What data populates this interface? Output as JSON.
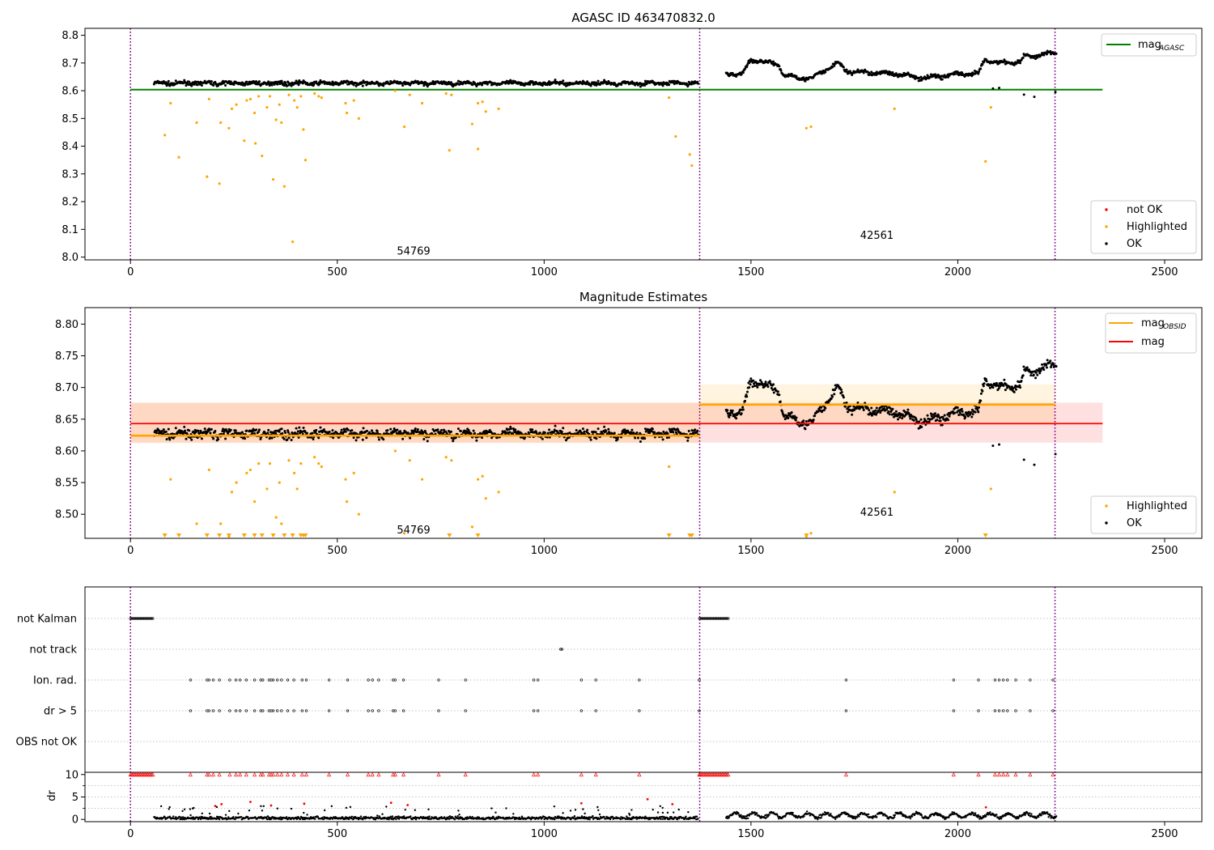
{
  "chart_data": [
    {
      "type": "scatter",
      "title": "AGASC ID 463470832.0",
      "xlim": [
        -110,
        2590
      ],
      "ylim": [
        7.99,
        8.825
      ],
      "xticks": [
        0,
        500,
        1000,
        1500,
        2000,
        2500
      ],
      "yticks": [
        8.0,
        8.1,
        8.2,
        8.3,
        8.4,
        8.5,
        8.6,
        8.7,
        8.8
      ],
      "ytick_labels": [
        "8.0",
        "8.1",
        "8.2",
        "8.3",
        "8.4",
        "8.5",
        "8.6",
        "8.7",
        "8.8"
      ],
      "vlines": [
        0,
        1376,
        2235
      ],
      "hline": {
        "name": "mag",
        "name_sub": "AGASC",
        "y": 8.604,
        "x": [
          0,
          2350
        ],
        "color": "#008000"
      },
      "line_legend": [
        {
          "label": "mag",
          "sub": "AGASC",
          "color": "#008000"
        }
      ],
      "marker_legend": [
        {
          "label": "not OK",
          "color": "#ff0000"
        },
        {
          "label": "Highlighted",
          "color": "#ffa500"
        },
        {
          "label": "OK",
          "color": "#000000"
        }
      ],
      "annotations": [
        {
          "text": "54769",
          "x": 687,
          "y": 8.02
        },
        {
          "text": "42561",
          "x": 1807,
          "y": 8.078
        }
      ],
      "highlighted_points": [
        [
          83,
          8.44
        ],
        [
          97,
          8.555
        ],
        [
          117,
          8.36
        ],
        [
          160,
          8.485
        ],
        [
          185,
          8.29
        ],
        [
          190,
          8.57
        ],
        [
          215,
          8.265
        ],
        [
          218,
          8.485
        ],
        [
          238,
          8.465
        ],
        [
          245,
          8.535
        ],
        [
          256,
          8.55
        ],
        [
          275,
          8.42
        ],
        [
          281,
          8.565
        ],
        [
          290,
          8.57
        ],
        [
          300,
          8.52
        ],
        [
          302,
          8.41
        ],
        [
          310,
          8.58
        ],
        [
          318,
          8.365
        ],
        [
          330,
          8.54
        ],
        [
          337,
          8.58
        ],
        [
          345,
          8.28
        ],
        [
          352,
          8.495
        ],
        [
          360,
          8.55
        ],
        [
          365,
          8.485
        ],
        [
          372,
          8.255
        ],
        [
          383,
          8.585
        ],
        [
          392,
          8.055
        ],
        [
          396,
          8.565
        ],
        [
          403,
          8.54
        ],
        [
          412,
          8.58
        ],
        [
          418,
          8.46
        ],
        [
          423,
          8.35
        ],
        [
          445,
          8.59
        ],
        [
          455,
          8.58
        ],
        [
          462,
          8.575
        ],
        [
          520,
          8.555
        ],
        [
          523,
          8.52
        ],
        [
          540,
          8.565
        ],
        [
          552,
          8.5
        ],
        [
          640,
          8.6
        ],
        [
          662,
          8.47
        ],
        [
          675,
          8.585
        ],
        [
          705,
          8.555
        ],
        [
          763,
          8.59
        ],
        [
          771,
          8.385
        ],
        [
          776,
          8.585
        ],
        [
          826,
          8.48
        ],
        [
          840,
          8.39
        ],
        [
          840,
          8.555
        ],
        [
          851,
          8.56
        ],
        [
          859,
          8.525
        ],
        [
          890,
          8.535
        ],
        [
          1302,
          8.575
        ],
        [
          1318,
          8.435
        ],
        [
          1352,
          8.37
        ],
        [
          1357,
          8.33
        ],
        [
          1634,
          8.465
        ],
        [
          1645,
          8.47
        ],
        [
          1847,
          8.535
        ],
        [
          2067,
          8.345
        ],
        [
          2080,
          8.54
        ]
      ],
      "ok_segments": [
        {
          "x0": 57,
          "x1": 1372,
          "n": 900,
          "base": 8.627,
          "wave": 0.003,
          "noise": 0.006,
          "steps": []
        },
        {
          "x0": 1440,
          "x1": 2238,
          "n": 560,
          "base": 8.662,
          "wave": 0.005,
          "noise": 0.006,
          "steps": [
            [
              1440,
              8.662
            ],
            [
              1480,
              8.66
            ],
            [
              1500,
              8.713
            ],
            [
              1565,
              8.695
            ],
            [
              1580,
              8.655
            ],
            [
              1650,
              8.642
            ],
            [
              1660,
              8.658
            ],
            [
              1710,
              8.7
            ],
            [
              1735,
              8.668
            ],
            [
              1830,
              8.663
            ],
            [
              1870,
              8.658
            ],
            [
              1910,
              8.645
            ],
            [
              2000,
              8.66
            ],
            [
              2050,
              8.66
            ],
            [
              2065,
              8.712
            ],
            [
              2100,
              8.7
            ],
            [
              2150,
              8.705
            ],
            [
              2160,
              8.722
            ],
            [
              2240,
              8.737
            ]
          ]
        }
      ],
      "ok_outliers": [
        [
          2085,
          8.608
        ],
        [
          2100,
          8.61
        ],
        [
          2160,
          8.586
        ],
        [
          2185,
          8.578
        ],
        [
          2236,
          8.595
        ]
      ]
    },
    {
      "type": "scatter",
      "title": "Magnitude Estimates",
      "xlim": [
        -110,
        2590
      ],
      "ylim": [
        8.462,
        8.826
      ],
      "xticks": [
        0,
        500,
        1000,
        1500,
        2000,
        2500
      ],
      "yticks": [
        8.5,
        8.55,
        8.6,
        8.65,
        8.7,
        8.75,
        8.8
      ],
      "ytick_labels": [
        "8.50",
        "8.55",
        "8.60",
        "8.65",
        "8.70",
        "8.75",
        "8.80"
      ],
      "vlines": [
        0,
        1376,
        2235
      ],
      "mag_line": {
        "name": "mag",
        "y": 8.643,
        "band": [
          8.613,
          8.676
        ],
        "x": [
          0,
          2350
        ],
        "color": "#ff0000"
      },
      "obsid_lines": [
        {
          "x": [
            0,
            1376
          ],
          "y": 8.624,
          "band": [
            8.612,
            8.676
          ]
        },
        {
          "x": [
            1376,
            2235
          ],
          "y": 8.673,
          "band": [
            8.641,
            8.705
          ]
        }
      ],
      "line_legend": [
        {
          "label": "mag",
          "sub": "OBSID",
          "color": "#ffa500"
        },
        {
          "label": "mag",
          "sub": "",
          "color": "#ff0000"
        }
      ],
      "marker_legend": [
        {
          "label": "Highlighted",
          "color": "#ffa500"
        },
        {
          "label": "OK",
          "color": "#000000"
        }
      ],
      "annotations": [
        {
          "text": "54769",
          "x": 687,
          "y": 8.475
        },
        {
          "text": "42561",
          "x": 1807,
          "y": 8.503
        }
      ],
      "clipped_markers_x": [
        83,
        117,
        185,
        215,
        238,
        275,
        300,
        318,
        345,
        372,
        392,
        412,
        418,
        423,
        771,
        840,
        1302,
        1352,
        1357,
        1634,
        2067
      ]
    },
    {
      "type": "scatter",
      "xlim": [
        -110,
        2590
      ],
      "xticks": [
        0,
        500,
        1000,
        1500,
        2000,
        2500
      ],
      "vlines": [
        0,
        1376,
        2235
      ],
      "flag_rows": [
        "not Kalman",
        "not track",
        "Ion. rad.",
        "dr > 5",
        "OBS not OK"
      ],
      "flags": {
        "not Kalman": [
          [
            0,
            55
          ],
          [
            1376,
            1445
          ]
        ],
        "not track": [
          [
            1040,
            1045
          ]
        ],
        "Ion. rad.": [
          145,
          185,
          190,
          200,
          215,
          240,
          255,
          265,
          280,
          300,
          315,
          320,
          335,
          340,
          345,
          355,
          365,
          380,
          395,
          415,
          425,
          480,
          525,
          575,
          585,
          600,
          635,
          640,
          660,
          745,
          810,
          975,
          985,
          1090,
          1125,
          1230,
          1375,
          1730,
          1990,
          2050,
          2090,
          2100,
          2110,
          2120,
          2140,
          2175,
          2230
        ],
        "dr > 5": [
          145,
          185,
          190,
          200,
          215,
          240,
          255,
          265,
          280,
          300,
          315,
          320,
          335,
          340,
          345,
          355,
          365,
          380,
          395,
          415,
          425,
          480,
          525,
          575,
          585,
          600,
          635,
          640,
          660,
          745,
          810,
          975,
          985,
          1090,
          1125,
          1230,
          1375,
          1730,
          1990,
          2050,
          2090,
          2100,
          2110,
          2120,
          2140,
          2175,
          2230
        ],
        "OBS not OK": []
      },
      "dr_ylabel": "dr",
      "dr_ylim": [
        -0.5,
        10.5
      ],
      "dr_yticks": [
        0,
        5,
        10
      ],
      "dr_capped_value": 10,
      "dr_outliers": [
        [
          205,
          3.0
        ],
        [
          220,
          3.4
        ],
        [
          290,
          3.9
        ],
        [
          340,
          3.1
        ],
        [
          420,
          3.5
        ],
        [
          630,
          3.7
        ],
        [
          670,
          3.2
        ],
        [
          1090,
          3.6
        ],
        [
          1250,
          4.5
        ],
        [
          1310,
          3.4
        ],
        [
          2068,
          2.7
        ]
      ]
    }
  ]
}
